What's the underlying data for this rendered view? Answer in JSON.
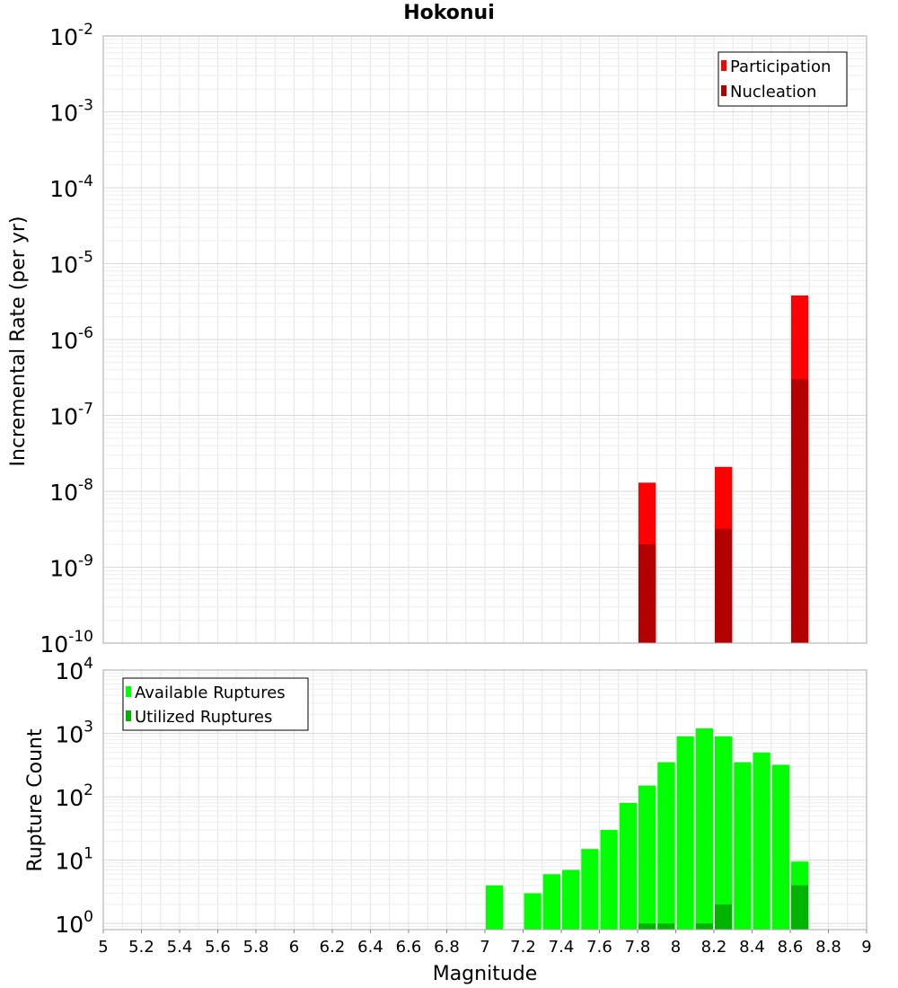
{
  "chart_data": [
    {
      "type": "bar",
      "title": "Hokonui",
      "xlabel": "",
      "ylabel": "Incremental Rate (per yr)",
      "yscale": "log",
      "ylim": [
        1e-10,
        0.01
      ],
      "xlim": [
        5,
        9
      ],
      "y_ticks": [
        {
          "base": "10",
          "exp": "-10",
          "value": 1e-10
        },
        {
          "base": "10",
          "exp": "-9",
          "value": 1e-09
        },
        {
          "base": "10",
          "exp": "-8",
          "value": 1e-08
        },
        {
          "base": "10",
          "exp": "-7",
          "value": 1e-07
        },
        {
          "base": "10",
          "exp": "-6",
          "value": 1e-06
        },
        {
          "base": "10",
          "exp": "-5",
          "value": 1e-05
        },
        {
          "base": "10",
          "exp": "-4",
          "value": 0.0001
        },
        {
          "base": "10",
          "exp": "-3",
          "value": 0.001
        },
        {
          "base": "10",
          "exp": "-2",
          "value": 0.01
        }
      ],
      "legend_position": "top-right",
      "grid": true,
      "series": [
        {
          "name": "Participation",
          "color": "#ff0000",
          "x": [
            7.85,
            8.25,
            8.65
          ],
          "values": [
            1.3e-08,
            2.1e-08,
            3.8e-06
          ]
        },
        {
          "name": "Nucleation",
          "color": "#b30000",
          "x": [
            7.85,
            8.25,
            8.65
          ],
          "values": [
            2e-09,
            3.2e-09,
            3e-07
          ]
        }
      ]
    },
    {
      "type": "bar",
      "title": "",
      "xlabel": "Magnitude",
      "ylabel": "Rupture Count",
      "yscale": "log",
      "ylim": [
        0.8,
        10000
      ],
      "xlim": [
        5,
        9
      ],
      "y_ticks": [
        {
          "base": "10",
          "exp": "0",
          "value": 1
        },
        {
          "base": "10",
          "exp": "1",
          "value": 10
        },
        {
          "base": "10",
          "exp": "2",
          "value": 100
        },
        {
          "base": "10",
          "exp": "3",
          "value": 1000
        },
        {
          "base": "10",
          "exp": "4",
          "value": 10000
        }
      ],
      "x_ticks": [
        "5",
        "5.2",
        "5.4",
        "5.6",
        "5.8",
        "6",
        "6.2",
        "6.4",
        "6.6",
        "6.8",
        "7",
        "7.2",
        "7.4",
        "7.6",
        "7.8",
        "8",
        "8.2",
        "8.4",
        "8.6",
        "8.8",
        "9"
      ],
      "legend_position": "top-left",
      "grid": true,
      "series": [
        {
          "name": "Available Ruptures",
          "color": "#00ff00",
          "x": [
            7.05,
            7.25,
            7.35,
            7.45,
            7.55,
            7.65,
            7.75,
            7.85,
            7.95,
            8.05,
            8.15,
            8.25,
            8.35,
            8.45,
            8.55,
            8.65
          ],
          "values": [
            4,
            3,
            6,
            7,
            15,
            30,
            80,
            150,
            350,
            900,
            1200,
            900,
            350,
            500,
            320,
            9.5
          ]
        },
        {
          "name": "Utilized Ruptures",
          "color": "#00b300",
          "x": [
            7.85,
            7.95,
            8.15,
            8.25,
            8.65
          ],
          "values": [
            1,
            1,
            1,
            2,
            4
          ]
        }
      ]
    }
  ]
}
